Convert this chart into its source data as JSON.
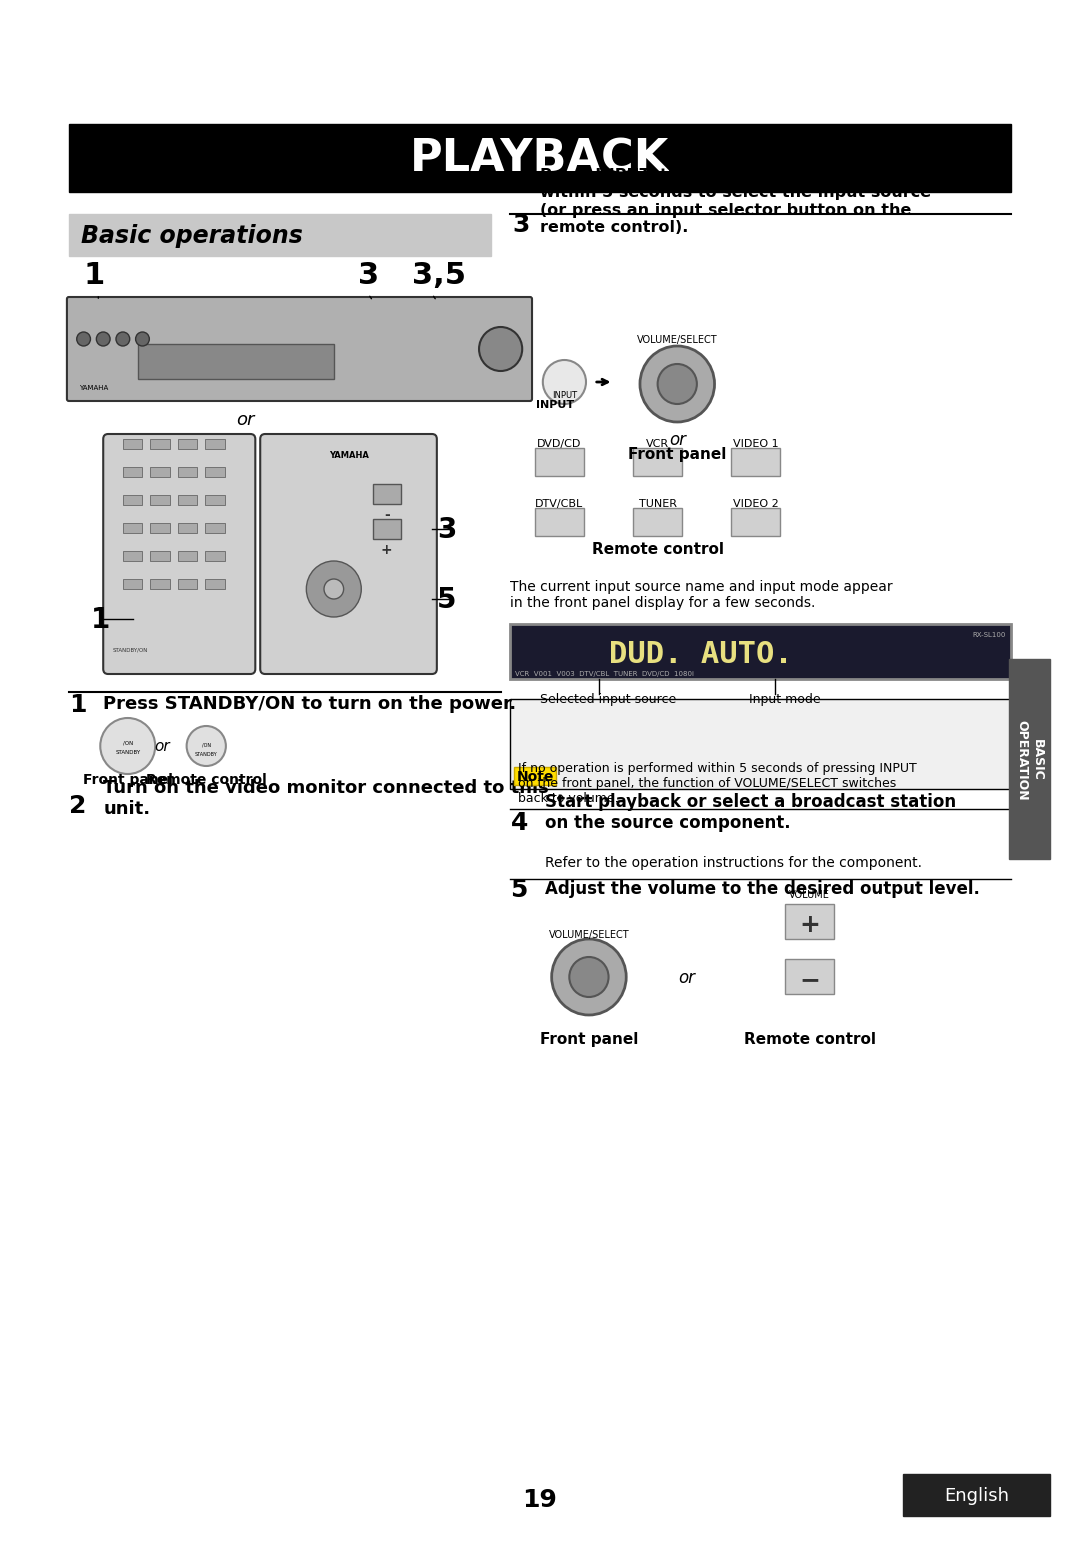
{
  "bg_color": "#ffffff",
  "page_width": 10.8,
  "page_height": 15.28,
  "title_text": "PLAYBACK",
  "title_bg": "#000000",
  "title_color": "#ffffff",
  "section_title": "Basic operations",
  "section_bg": "#c8c8c8",
  "section_title_color": "#000000",
  "right_tab_text": "BASIC\nOPERATION",
  "right_tab_bg": "#555555",
  "right_tab_color": "#ffffff",
  "bottom_tab_text": "English",
  "bottom_tab_bg": "#222222",
  "bottom_tab_color": "#ffffff",
  "page_number": "19",
  "step1_text": "Press STANDBY/ON to turn on the power.",
  "step2_text": "Turn on the video monitor connected to this\nunit.",
  "step3_title": "Press INPUT, then rotate VOLUME/SELECT\nwithin 5 seconds to select the input source\n(or press an input selector button on the\nremote control).",
  "step4_title": "Start playback or select a broadcast station\non the source component.",
  "step4_sub": "Refer to the operation instructions for the component.",
  "step5_title": "Adjust the volume to the desired output level.",
  "note_title": "Note",
  "note_text": "If no operation is performed within 5 seconds of pressing INPUT\non the front panel, the function of VOLUME/SELECT switches\nback to volume.",
  "display_text": "DUD. AUTO.",
  "selected_source_label": "Selected input source",
  "input_mode_label": "Input mode",
  "front_panel_label": "Front panel",
  "remote_control_label": "Remote control",
  "or_text": "or"
}
